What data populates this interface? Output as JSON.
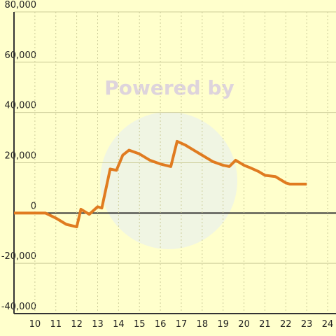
{
  "chart_data": {
    "type": "line",
    "watermark": "Powered by",
    "x": [
      9,
      10.5,
      11,
      11.5,
      12,
      12.2,
      12.6,
      13,
      13.2,
      13.6,
      13.9,
      14.2,
      14.5,
      15,
      15.5,
      16,
      16.5,
      16.8,
      17.2,
      17.6,
      18,
      18.5,
      19,
      19.3,
      19.6,
      20,
      20.3,
      20.7,
      21,
      21.5,
      22,
      22.2,
      23
    ],
    "series": [
      {
        "color": "#e07b20",
        "values": [
          0,
          0,
          -2000,
          -4500,
          -5500,
          1500,
          -500,
          2500,
          2000,
          17500,
          17000,
          23000,
          25000,
          23500,
          21000,
          19500,
          18500,
          28500,
          27000,
          25000,
          23000,
          20500,
          19000,
          18500,
          21000,
          19000,
          18000,
          16500,
          15000,
          14500,
          12000,
          11500,
          11500
        ]
      }
    ],
    "xlim": [
      9,
      24.4
    ],
    "xticks": [
      10,
      11,
      12,
      13,
      14,
      15,
      16,
      17,
      18,
      19,
      20,
      21,
      22,
      23,
      24
    ],
    "ylim": [
      -40000,
      80000
    ],
    "yticks": [
      {
        "value": -40000,
        "label": "-40,000"
      },
      {
        "value": -20000,
        "label": "-20,000"
      },
      0,
      {
        "value": 20000,
        "label": "20,000"
      },
      {
        "value": 40000,
        "label": "40,000"
      },
      {
        "value": 60000,
        "label": "60,000"
      },
      {
        "value": 80000,
        "label": "80,000"
      }
    ],
    "grid": true
  }
}
